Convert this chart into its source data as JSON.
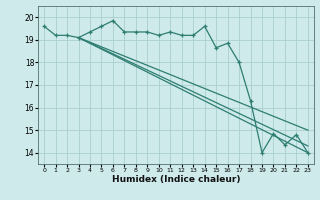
{
  "xlabel": "Humidex (Indice chaleur)",
  "bg_color": "#ceeaea",
  "grid_color": "#aacfcf",
  "line_color": "#2e7d72",
  "xlim": [
    -0.5,
    23.5
  ],
  "ylim": [
    13.5,
    20.5
  ],
  "yticks": [
    14,
    15,
    16,
    17,
    18,
    19,
    20
  ],
  "xtick_labels": [
    "0",
    "1",
    "2",
    "3",
    "4",
    "5",
    "6",
    "7",
    "8",
    "9",
    "10",
    "11",
    "12",
    "13",
    "14",
    "15",
    "16",
    "17",
    "18",
    "19",
    "20",
    "21",
    "22",
    "23"
  ],
  "series": [
    {
      "x": [
        0,
        1,
        2,
        3,
        4,
        5,
        6,
        7,
        8,
        9,
        10,
        11,
        12,
        13,
        14,
        15,
        16,
        17,
        18,
        19,
        20,
        21,
        22,
        23
      ],
      "y": [
        19.6,
        19.2,
        19.2,
        19.1,
        19.35,
        19.6,
        19.85,
        19.35,
        19.35,
        19.35,
        19.2,
        19.35,
        19.2,
        19.2,
        19.6,
        18.65,
        18.85,
        18.0,
        16.3,
        14.0,
        14.85,
        14.35,
        14.8,
        14.0
      ]
    },
    {
      "x": [
        3,
        23
      ],
      "y": [
        19.1,
        15.0
      ]
    },
    {
      "x": [
        3,
        23
      ],
      "y": [
        19.1,
        14.3
      ]
    },
    {
      "x": [
        3,
        23
      ],
      "y": [
        19.1,
        14.0
      ]
    }
  ]
}
